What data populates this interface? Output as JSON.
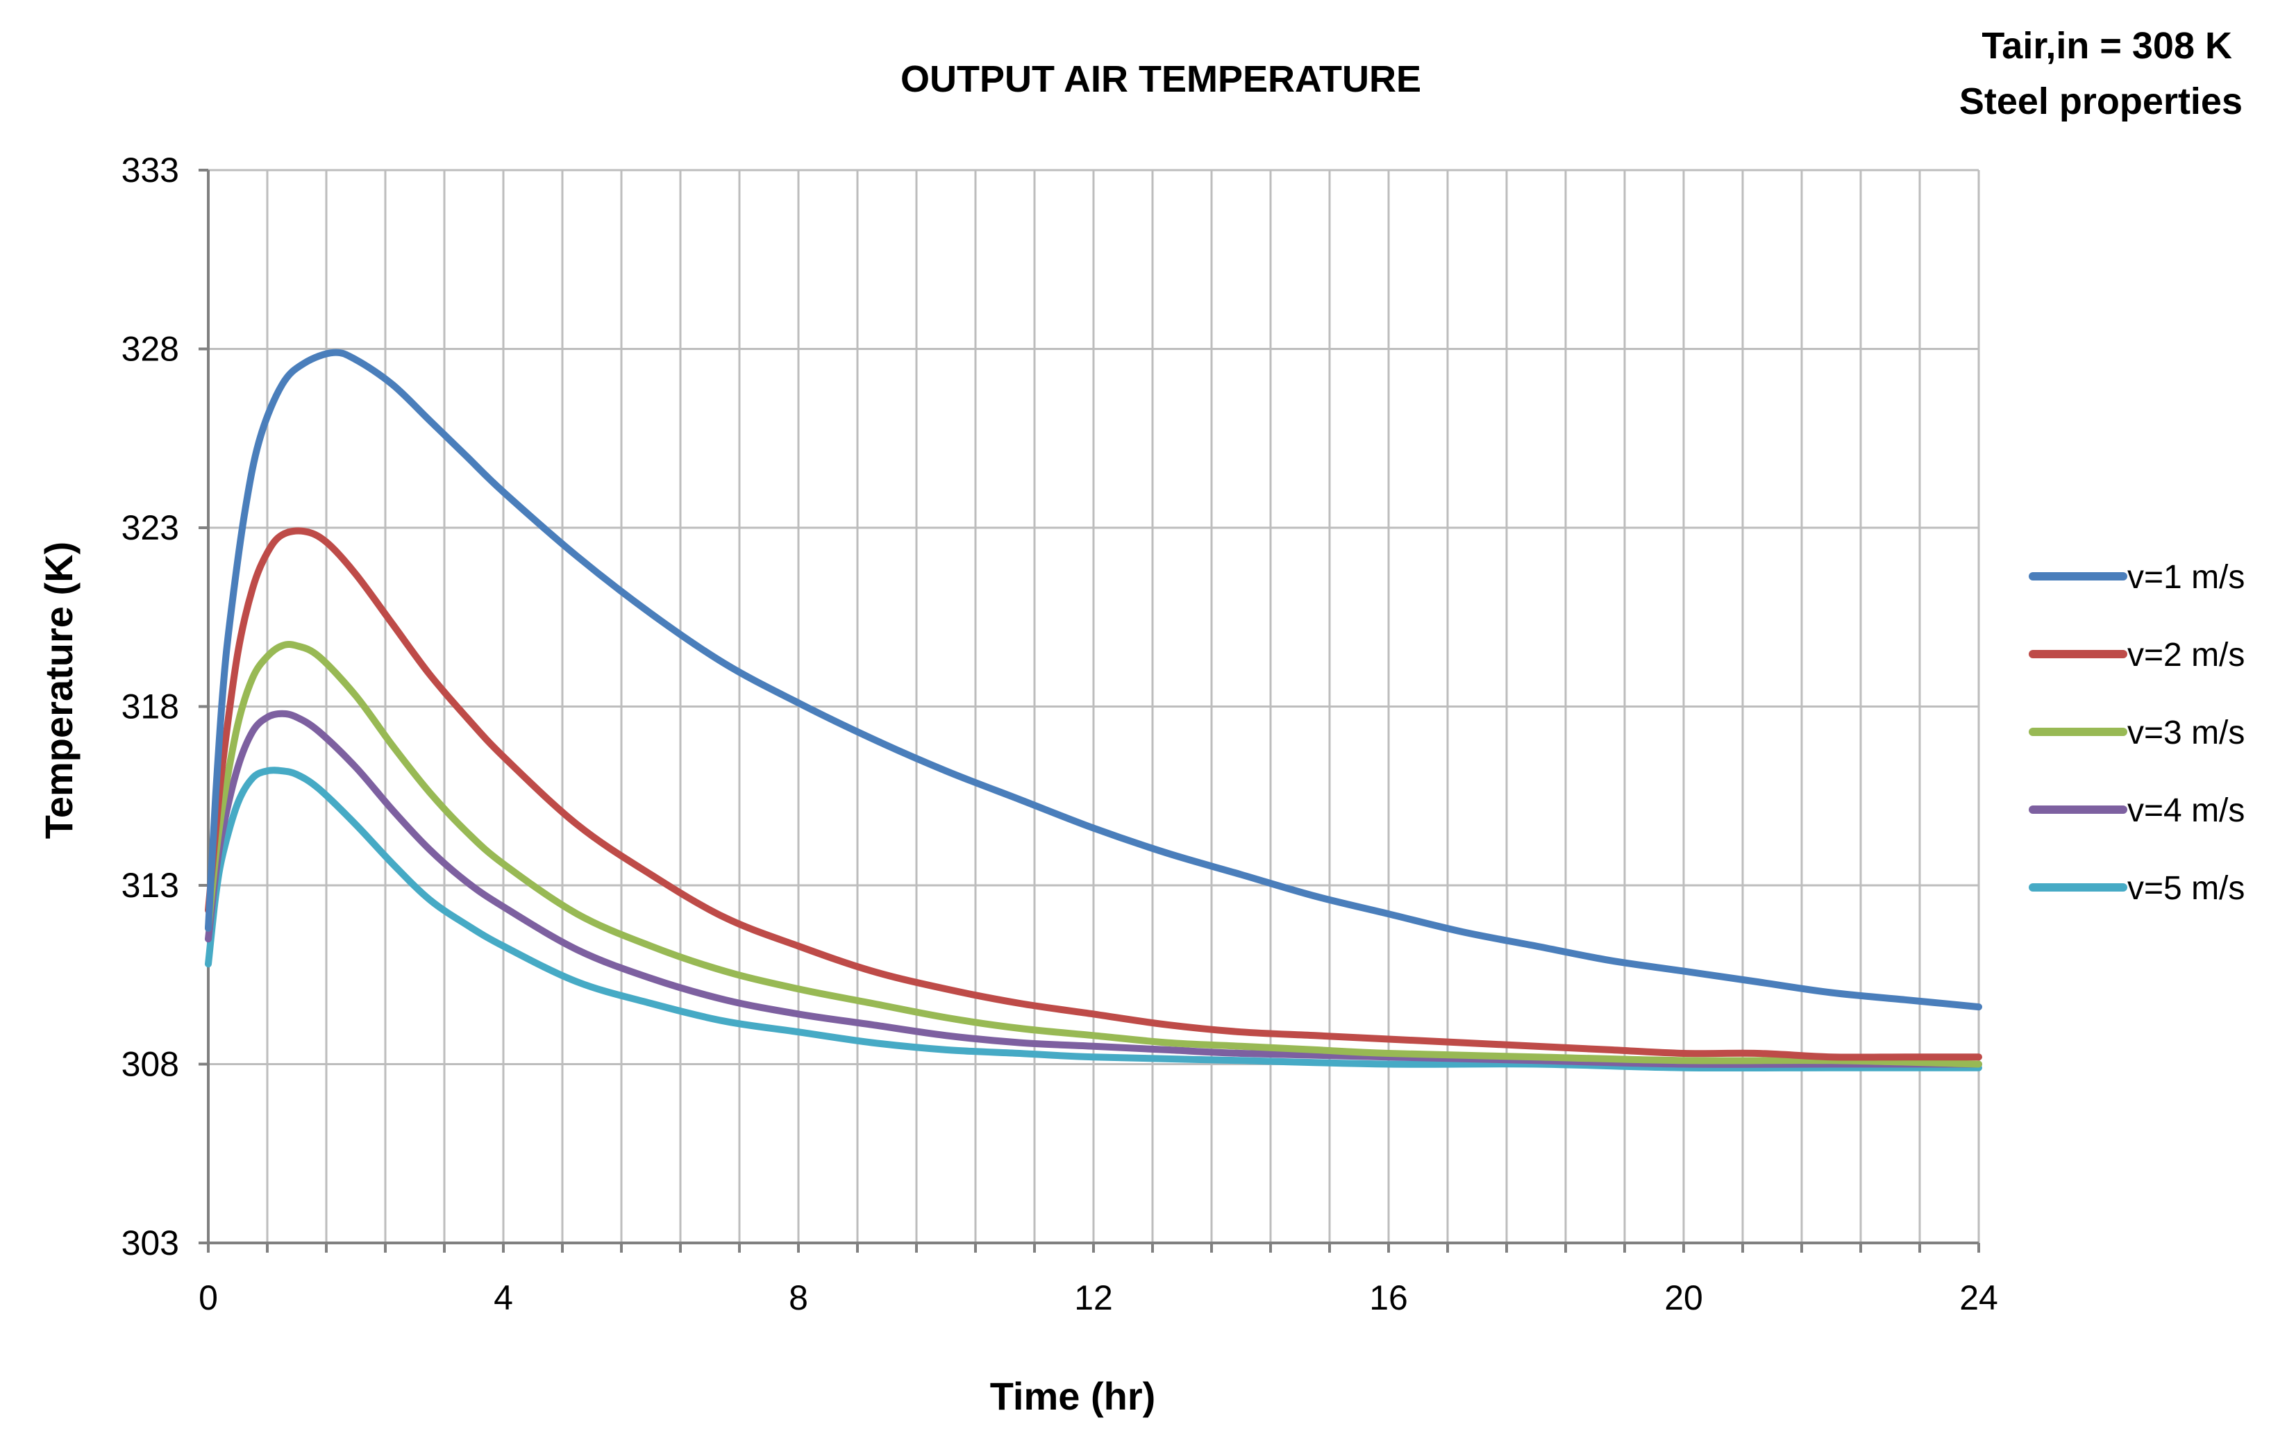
{
  "chart_data": {
    "type": "line",
    "title": "OUTPUT AIR TEMPERATURE",
    "annotations": [
      "Tair,in =  308 K",
      "Steel properties"
    ],
    "xlabel": "Time (hr)",
    "ylabel": "Temperature  (K)",
    "xlim": [
      0,
      24
    ],
    "ylim": [
      303,
      333
    ],
    "xticks": [
      0,
      4,
      8,
      12,
      16,
      20,
      24
    ],
    "yticks": [
      303,
      308,
      313,
      318,
      323,
      328,
      333
    ],
    "x_minor_step": 0.8,
    "grid": true,
    "legend_position": "right",
    "series": [
      {
        "name": "v=1 m/s",
        "color": "#4a7ebb",
        "x": [
          0,
          0.1,
          0.2,
          0.3,
          0.5,
          0.7,
          1.0,
          1.3,
          1.7,
          2.0,
          2.5,
          3.0,
          3.5,
          4.0,
          5.0,
          6.0,
          7.0,
          8.0,
          9.0,
          10.0,
          11.0,
          12.0,
          13.0,
          14.0,
          15.0,
          16.0,
          17.0,
          18.0,
          19.0,
          20.0,
          21.0,
          22.0,
          23.0,
          24.0
        ],
        "values": [
          311.8,
          315.5,
          318.5,
          320.5,
          323.5,
          325.5,
          327.0,
          327.6,
          327.9,
          327.7,
          327.0,
          326.0,
          325.0,
          324.0,
          322.2,
          320.6,
          319.2,
          318.1,
          317.1,
          316.2,
          315.4,
          314.6,
          313.9,
          313.3,
          312.7,
          312.2,
          311.7,
          311.3,
          310.9,
          310.6,
          310.3,
          310.0,
          309.8,
          309.6
        ]
      },
      {
        "name": "v=2 m/s",
        "color": "#be4b48",
        "x": [
          0,
          0.1,
          0.2,
          0.4,
          0.6,
          0.8,
          1.0,
          1.3,
          1.6,
          2.0,
          2.5,
          3.0,
          3.5,
          4.0,
          5.0,
          6.0,
          7.0,
          8.0,
          9.0,
          10.0,
          11.0,
          12.0,
          13.0,
          14.0,
          15.0,
          16.0,
          17.0,
          18.0,
          19.0,
          20.0,
          21.0,
          22.0,
          23.0,
          24.0
        ],
        "values": [
          312.3,
          314.5,
          316.5,
          319.5,
          321.3,
          322.3,
          322.8,
          322.9,
          322.6,
          321.7,
          320.3,
          318.9,
          317.7,
          316.6,
          314.7,
          313.3,
          312.1,
          311.3,
          310.6,
          310.1,
          309.7,
          309.4,
          309.1,
          308.9,
          308.8,
          308.7,
          308.6,
          308.5,
          308.4,
          308.3,
          308.3,
          308.2,
          308.2,
          308.2
        ]
      },
      {
        "name": "v=3 m/s",
        "color": "#98b954",
        "x": [
          0,
          0.1,
          0.2,
          0.4,
          0.6,
          0.8,
          1.0,
          1.2,
          1.5,
          2.0,
          2.5,
          3.0,
          3.5,
          4.0,
          5.0,
          6.0,
          7.0,
          8.0,
          9.0,
          10.0,
          11.0,
          12.0,
          13.0,
          14.0,
          15.0,
          16.0,
          18.0,
          20.0,
          22.0,
          24.0
        ],
        "values": [
          311.8,
          313.8,
          315.3,
          317.5,
          318.8,
          319.4,
          319.7,
          319.7,
          319.4,
          318.3,
          316.9,
          315.6,
          314.5,
          313.6,
          312.2,
          311.3,
          310.6,
          310.1,
          309.7,
          309.3,
          309.0,
          308.8,
          308.6,
          308.5,
          308.4,
          308.3,
          308.2,
          308.1,
          308.1,
          308.0
        ]
      },
      {
        "name": "v=4 m/s",
        "color": "#7d60a0",
        "x": [
          0,
          0.1,
          0.2,
          0.4,
          0.6,
          0.8,
          1.0,
          1.2,
          1.5,
          2.0,
          2.5,
          3.0,
          3.5,
          4.0,
          5.0,
          6.0,
          7.0,
          8.0,
          9.0,
          10.0,
          11.0,
          12.0,
          13.0,
          14.0,
          16.0,
          18.0,
          20.0,
          22.0,
          24.0
        ],
        "values": [
          311.5,
          313.3,
          314.6,
          316.3,
          317.3,
          317.7,
          317.8,
          317.7,
          317.3,
          316.3,
          315.1,
          314.0,
          313.1,
          312.4,
          311.2,
          310.4,
          309.8,
          309.4,
          309.1,
          308.8,
          308.6,
          308.5,
          308.4,
          308.3,
          308.2,
          308.1,
          308.0,
          308.0,
          308.0
        ]
      },
      {
        "name": "v=5 m/s",
        "color": "#46aac5",
        "x": [
          0,
          0.1,
          0.2,
          0.4,
          0.6,
          0.8,
          1.0,
          1.2,
          1.5,
          2.0,
          2.5,
          3.0,
          3.5,
          4.0,
          5.0,
          6.0,
          7.0,
          8.0,
          9.0,
          10.0,
          11.0,
          12.0,
          14.0,
          16.0,
          18.0,
          20.0,
          22.0,
          24.0
        ],
        "values": [
          310.8,
          312.7,
          313.9,
          315.3,
          316.0,
          316.2,
          316.2,
          316.1,
          315.7,
          314.7,
          313.6,
          312.6,
          311.9,
          311.3,
          310.3,
          309.7,
          309.2,
          308.9,
          308.6,
          308.4,
          308.3,
          308.2,
          308.1,
          308.0,
          308.0,
          307.9,
          307.9,
          307.9
        ]
      }
    ]
  }
}
